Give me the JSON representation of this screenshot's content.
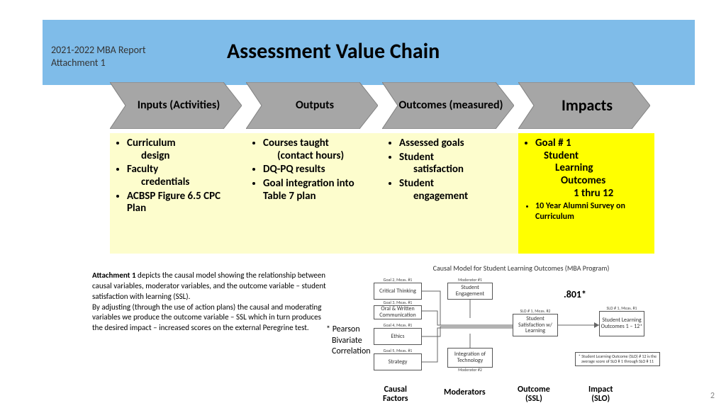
{
  "header": {
    "left_line1": "2021-2022 MBA Report",
    "left_line2": "Attachment  1",
    "title": "Assessment Value Chain",
    "band_color": "#7fbce9"
  },
  "chevrons": {
    "fill": "#a6a6a6",
    "stroke": "#808080",
    "label_fontsize_normal": 16,
    "label_fontsize_large": 22,
    "items": [
      {
        "label": "Inputs (Activities)",
        "fontsize": 16
      },
      {
        "label": "Outputs",
        "fontsize": 16
      },
      {
        "label": "Outcomes (measured)",
        "fontsize": 16
      },
      {
        "label": "Impacts",
        "fontsize": 22
      }
    ]
  },
  "columns": {
    "bg_light": "#fdfdcd",
    "bg_dark": "#ffff00",
    "fontsize_normal": 15,
    "fontsize_small": 12,
    "items": [
      {
        "bg": "#fdfdcd",
        "bullets": [
          {
            "text": "Curriculum",
            "sub": "design"
          },
          {
            "text": "Faculty",
            "sub": "credentials"
          },
          {
            "text": "ACBSP Figure 6.5 CPC Plan"
          }
        ]
      },
      {
        "bg": "#fdfdcd",
        "bullets": [
          {
            "text": "Courses taught",
            "sub": "(contact hours)"
          },
          {
            "text": "DQ-PQ results"
          },
          {
            "text": "Goal integration into Table 7 plan"
          }
        ]
      },
      {
        "bg": "#fdfdcd",
        "bullets": [
          {
            "text": "Assessed goals"
          },
          {
            "text": "Student",
            "sub": "satisfaction"
          },
          {
            "text": "Student",
            "sub": "engagement"
          }
        ]
      },
      {
        "bg": "#ffff00",
        "bullets_html": "goal_impact"
      }
    ]
  },
  "impact_col": {
    "l1": "Goal # 1",
    "l2": "Student",
    "l3": "Learning",
    "l4": "Outcomes",
    "l5": "1 thru 12",
    "l6": "10 Year Alumni Survey on Curriculum"
  },
  "description": {
    "bold_lead": "Attachment 1",
    "para1": " depicts the causal model showing the relationship between causal variables, moderator variables, and the outcome variable – student satisfaction with learning (SSL).",
    "para2": "By adjusting (through the use of action plans) the causal and moderating variables we produce the outcome variable – SSL which in turn produces the desired impact – increased scores on the external Peregrine test."
  },
  "pearson": {
    "l1": "* Pearson",
    "l2": "Bivariate",
    "l3": "Correlation"
  },
  "causal": {
    "title": "Causal Model for Student Learning Outcomes (MBA Program)",
    "coef": ".801*",
    "nodes": {
      "critical": {
        "caption": "Goal 2, Meas. #1",
        "label": "Critical Thinking"
      },
      "oral": {
        "caption": "Goal 3, Meas. #1",
        "label": "Oral & Written Communication"
      },
      "ethics": {
        "caption": "Goal 4, Meas. #1",
        "label": "Ethics"
      },
      "strategy": {
        "caption": "Goal 5, Meas. #1",
        "label": "Strategy"
      },
      "engagement": {
        "caption": "Moderator #1",
        "label": "Student Engagement"
      },
      "integration": {
        "caption": "Moderator #2",
        "label": "Integration of Technology"
      },
      "ssl": {
        "caption": "SLO # 1, Meas. #2",
        "label": "Student Satisfaction w/ Learning"
      },
      "slo": {
        "caption": "SLO # 1, Meas. #1",
        "label": "Student Learning Outcomes 1 – 12*"
      }
    },
    "footnote": "* Student Learning Outcome (SLO) # 12 is the average score of SLO # 1 through SLO # 11",
    "axis": {
      "causal": "Causal Factors",
      "moderators": "Moderators",
      "outcome": "Outcome (SSL)",
      "impact": "Impact (SLO)"
    }
  },
  "page_number": "2"
}
